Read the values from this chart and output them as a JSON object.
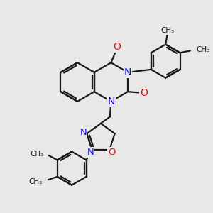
{
  "bg_color": "#e8e8e8",
  "bond_color": "#1a1a1a",
  "n_color": "#1010ee",
  "o_color": "#ee1010",
  "lw": 1.6,
  "figsize": [
    3.0,
    3.0
  ],
  "dpi": 100,
  "xlim": [
    0,
    10
  ],
  "ylim": [
    0,
    10
  ]
}
